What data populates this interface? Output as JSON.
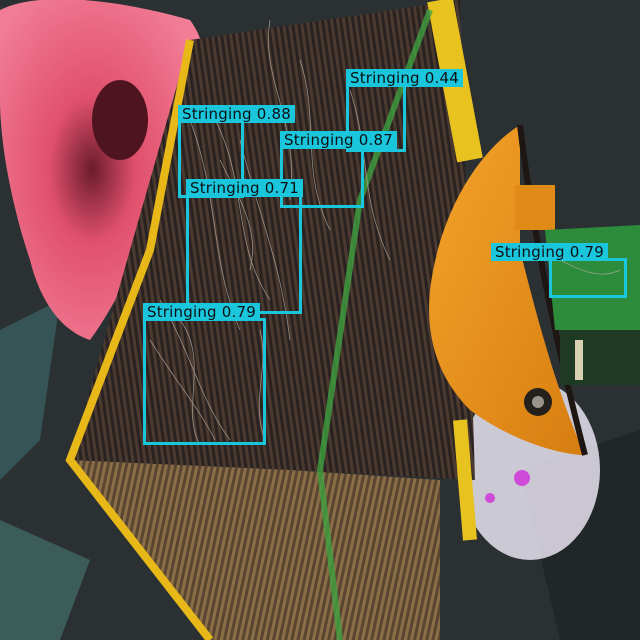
{
  "scene": {
    "description_icon": "3d-print-defect-photo",
    "class_name": "Stringing",
    "box_color": "#19c6dc",
    "detections": [
      {
        "label": "Stringing",
        "confidence": "0.44"
      },
      {
        "label": "Stringing",
        "confidence": "0.88"
      },
      {
        "label": "Stringing",
        "confidence": "0.87"
      },
      {
        "label": "Stringing",
        "confidence": "0.71"
      },
      {
        "label": "Stringing",
        "confidence": "0.79"
      },
      {
        "label": "Stringing",
        "confidence": "0.79"
      }
    ]
  }
}
